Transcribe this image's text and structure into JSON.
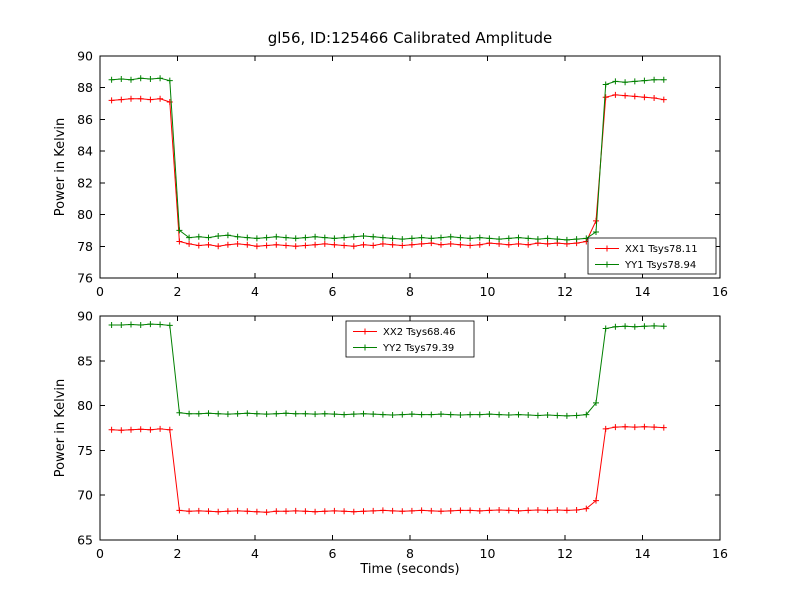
{
  "chart_data": [
    {
      "type": "line",
      "title": "gl56, ID:125466 Calibrated Amplitude",
      "xlabel": "",
      "ylabel": "Power in Kelvin",
      "xlim": [
        0,
        16
      ],
      "ylim": [
        76,
        90
      ],
      "xticks": [
        0,
        2,
        4,
        6,
        8,
        10,
        12,
        14,
        16
      ],
      "yticks": [
        76,
        78,
        80,
        82,
        84,
        86,
        88,
        90
      ],
      "grid": false,
      "marker": "+",
      "legend": {
        "position": "lower right",
        "entries": [
          "XX1 Tsys78.11",
          "YY1 Tsys78.94"
        ]
      },
      "x": [
        0.3,
        0.55,
        0.8,
        1.05,
        1.3,
        1.55,
        1.8,
        2.05,
        2.3,
        2.55,
        2.8,
        3.05,
        3.3,
        3.55,
        3.8,
        4.05,
        4.3,
        4.55,
        4.8,
        5.05,
        5.3,
        5.55,
        5.8,
        6.05,
        6.3,
        6.55,
        6.8,
        7.05,
        7.3,
        7.55,
        7.8,
        8.05,
        8.3,
        8.55,
        8.8,
        9.05,
        9.3,
        9.55,
        9.8,
        10.05,
        10.3,
        10.55,
        10.8,
        11.05,
        11.3,
        11.55,
        11.8,
        12.05,
        12.3,
        12.55,
        12.8,
        13.05,
        13.3,
        13.55,
        13.8,
        14.05,
        14.3,
        14.55
      ],
      "series": [
        {
          "name": "XX1 Tsys78.11",
          "color": "#ff0000",
          "values": [
            87.2,
            87.25,
            87.3,
            87.3,
            87.25,
            87.3,
            87.1,
            78.3,
            78.15,
            78.05,
            78.1,
            78.0,
            78.1,
            78.15,
            78.1,
            78.0,
            78.05,
            78.1,
            78.05,
            78.0,
            78.05,
            78.1,
            78.15,
            78.1,
            78.05,
            78.0,
            78.1,
            78.05,
            78.15,
            78.1,
            78.05,
            78.1,
            78.15,
            78.2,
            78.1,
            78.15,
            78.1,
            78.05,
            78.1,
            78.2,
            78.15,
            78.1,
            78.15,
            78.1,
            78.2,
            78.15,
            78.2,
            78.15,
            78.2,
            78.3,
            79.6,
            87.4,
            87.55,
            87.5,
            87.45,
            87.4,
            87.35,
            87.25
          ]
        },
        {
          "name": "YY1 Tsys78.94",
          "color": "#008000",
          "values": [
            88.5,
            88.55,
            88.5,
            88.6,
            88.55,
            88.6,
            88.45,
            79.0,
            78.55,
            78.6,
            78.55,
            78.65,
            78.7,
            78.6,
            78.55,
            78.5,
            78.55,
            78.6,
            78.55,
            78.5,
            78.55,
            78.6,
            78.55,
            78.5,
            78.55,
            78.6,
            78.65,
            78.6,
            78.55,
            78.5,
            78.45,
            78.5,
            78.55,
            78.5,
            78.55,
            78.6,
            78.55,
            78.5,
            78.55,
            78.5,
            78.45,
            78.5,
            78.55,
            78.5,
            78.45,
            78.5,
            78.45,
            78.4,
            78.45,
            78.5,
            78.9,
            88.2,
            88.4,
            88.35,
            88.4,
            88.45,
            88.5,
            88.5
          ]
        }
      ]
    },
    {
      "type": "line",
      "title": "",
      "xlabel": "Time (seconds)",
      "ylabel": "Power in Kelvin",
      "xlim": [
        0,
        16
      ],
      "ylim": [
        65,
        90
      ],
      "xticks": [
        0,
        2,
        4,
        6,
        8,
        10,
        12,
        14,
        16
      ],
      "yticks": [
        65,
        70,
        75,
        80,
        85,
        90
      ],
      "grid": false,
      "marker": "+",
      "legend": {
        "position": "upper center",
        "entries": [
          "XX2 Tsys68.46",
          "YY2 Tsys79.39"
        ]
      },
      "x": [
        0.3,
        0.55,
        0.8,
        1.05,
        1.3,
        1.55,
        1.8,
        2.05,
        2.3,
        2.55,
        2.8,
        3.05,
        3.3,
        3.55,
        3.8,
        4.05,
        4.3,
        4.55,
        4.8,
        5.05,
        5.3,
        5.55,
        5.8,
        6.05,
        6.3,
        6.55,
        6.8,
        7.05,
        7.3,
        7.55,
        7.8,
        8.05,
        8.3,
        8.55,
        8.8,
        9.05,
        9.3,
        9.55,
        9.8,
        10.05,
        10.3,
        10.55,
        10.8,
        11.05,
        11.3,
        11.55,
        11.8,
        12.05,
        12.3,
        12.55,
        12.8,
        13.05,
        13.3,
        13.55,
        13.8,
        14.05,
        14.3,
        14.55
      ],
      "series": [
        {
          "name": "XX2 Tsys68.46",
          "color": "#ff0000",
          "values": [
            77.3,
            77.25,
            77.3,
            77.35,
            77.3,
            77.4,
            77.3,
            68.3,
            68.2,
            68.25,
            68.2,
            68.15,
            68.2,
            68.25,
            68.2,
            68.15,
            68.1,
            68.2,
            68.2,
            68.25,
            68.2,
            68.15,
            68.2,
            68.25,
            68.2,
            68.15,
            68.2,
            68.25,
            68.3,
            68.25,
            68.2,
            68.25,
            68.3,
            68.25,
            68.2,
            68.25,
            68.3,
            68.3,
            68.25,
            68.3,
            68.35,
            68.3,
            68.25,
            68.3,
            68.35,
            68.3,
            68.35,
            68.3,
            68.35,
            68.5,
            69.4,
            77.4,
            77.6,
            77.65,
            77.6,
            77.65,
            77.6,
            77.55
          ]
        },
        {
          "name": "YY2 Tsys79.39",
          "color": "#008000",
          "values": [
            89.0,
            89.0,
            89.05,
            89.0,
            89.1,
            89.05,
            88.95,
            79.2,
            79.1,
            79.1,
            79.15,
            79.1,
            79.05,
            79.1,
            79.15,
            79.1,
            79.05,
            79.1,
            79.15,
            79.1,
            79.1,
            79.05,
            79.1,
            79.05,
            79.0,
            79.05,
            79.1,
            79.05,
            79.0,
            78.95,
            79.0,
            79.05,
            79.0,
            79.0,
            79.05,
            79.0,
            78.95,
            79.0,
            79.0,
            79.05,
            79.0,
            78.95,
            79.0,
            78.95,
            78.9,
            78.95,
            78.9,
            78.85,
            78.9,
            79.0,
            80.3,
            88.6,
            88.8,
            88.85,
            88.8,
            88.85,
            88.9,
            88.85
          ]
        }
      ]
    }
  ]
}
